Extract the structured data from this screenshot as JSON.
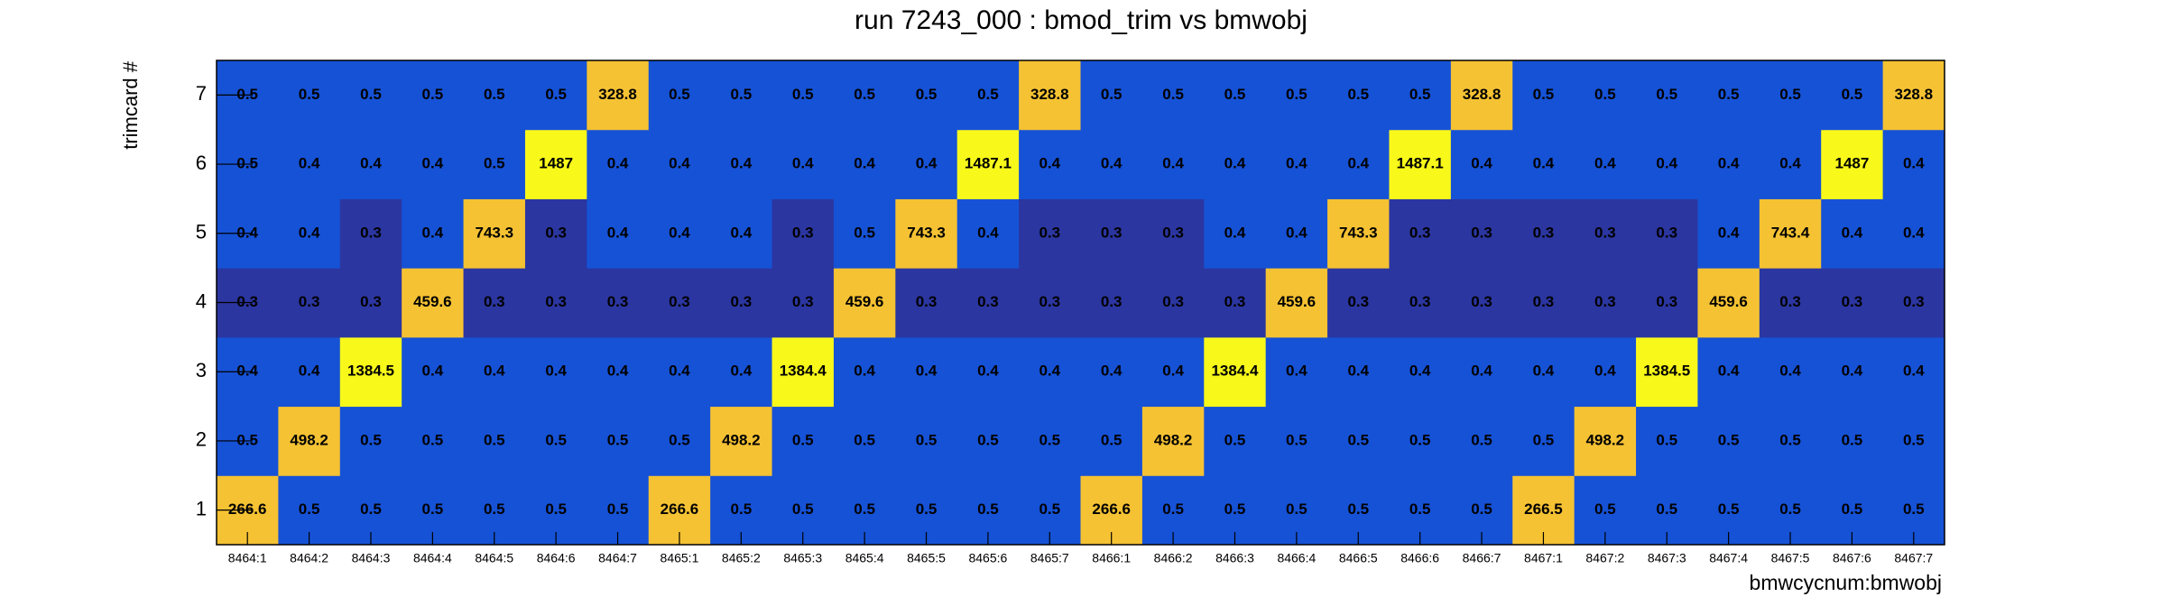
{
  "chart_data": {
    "type": "heatmap",
    "title": "run 7243_000 : bmod_trim vs bmwobj",
    "x_label": "bmwcycnum:bmwobj",
    "y_label": "trimcard #",
    "categories": [
      "8464:1",
      "8464:2",
      "8464:3",
      "8464:4",
      "8464:5",
      "8464:6",
      "8464:7",
      "8465:1",
      "8465:2",
      "8465:3",
      "8465:4",
      "8465:5",
      "8465:6",
      "8465:7",
      "8466:1",
      "8466:2",
      "8466:3",
      "8466:4",
      "8466:5",
      "8466:6",
      "8466:7",
      "8467:1",
      "8467:2",
      "8467:3",
      "8467:4",
      "8467:5",
      "8467:6",
      "8467:7"
    ],
    "y_categories": [
      "1",
      "2",
      "3",
      "4",
      "5",
      "6",
      "7"
    ],
    "values": [
      [
        266.6,
        0.5,
        0.5,
        0.5,
        0.5,
        0.5,
        0.5,
        266.6,
        0.5,
        0.5,
        0.5,
        0.5,
        0.5,
        0.5,
        266.6,
        0.5,
        0.5,
        0.5,
        0.5,
        0.5,
        0.5,
        266.5,
        0.5,
        0.5,
        0.5,
        0.5,
        0.5,
        0.5
      ],
      [
        0.5,
        498.2,
        0.5,
        0.5,
        0.5,
        0.5,
        0.5,
        0.5,
        498.2,
        0.5,
        0.5,
        0.5,
        0.5,
        0.5,
        0.5,
        498.2,
        0.5,
        0.5,
        0.5,
        0.5,
        0.5,
        0.5,
        498.2,
        0.5,
        0.5,
        0.5,
        0.5,
        0.5
      ],
      [
        0.4,
        0.4,
        1384.5,
        0.4,
        0.4,
        0.4,
        0.4,
        0.4,
        0.4,
        1384.4,
        0.4,
        0.4,
        0.4,
        0.4,
        0.4,
        0.4,
        1384.4,
        0.4,
        0.4,
        0.4,
        0.4,
        0.4,
        0.4,
        1384.5,
        0.4,
        0.4,
        0.4,
        0.4
      ],
      [
        0.3,
        0.3,
        0.3,
        459.6,
        0.3,
        0.3,
        0.3,
        0.3,
        0.3,
        0.3,
        459.6,
        0.3,
        0.3,
        0.3,
        0.3,
        0.3,
        0.3,
        459.6,
        0.3,
        0.3,
        0.3,
        0.3,
        0.3,
        0.3,
        459.6,
        0.3,
        0.3,
        0.3
      ],
      [
        0.4,
        0.4,
        0.3,
        0.4,
        743.3,
        0.3,
        0.4,
        0.4,
        0.4,
        0.3,
        0.5,
        743.3,
        0.4,
        0.3,
        0.3,
        0.3,
        0.4,
        0.4,
        743.3,
        0.3,
        0.3,
        0.3,
        0.3,
        0.3,
        0.4,
        743.4,
        0.4,
        0.4
      ],
      [
        0.5,
        0.4,
        0.4,
        0.4,
        0.5,
        1487.0,
        0.4,
        0.4,
        0.4,
        0.4,
        0.4,
        0.4,
        1487.1,
        0.4,
        0.4,
        0.4,
        0.4,
        0.4,
        0.4,
        1487.1,
        0.4,
        0.4,
        0.4,
        0.4,
        0.4,
        0.4,
        1487.0,
        0.4
      ],
      [
        0.5,
        0.5,
        0.5,
        0.5,
        0.5,
        0.5,
        328.8,
        0.5,
        0.5,
        0.5,
        0.5,
        0.5,
        0.5,
        328.8,
        0.5,
        0.5,
        0.5,
        0.5,
        0.5,
        0.5,
        328.8,
        0.5,
        0.5,
        0.5,
        0.5,
        0.5,
        0.5,
        328.8
      ]
    ],
    "palette": [
      "#2b36a0",
      "#1652d6",
      "#f5c233",
      "#f8f81b"
    ],
    "log_scale": true
  }
}
